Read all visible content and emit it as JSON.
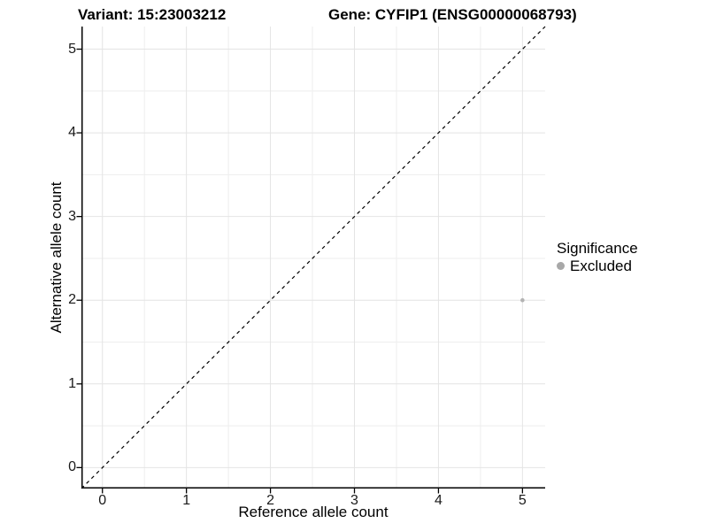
{
  "header": {
    "variant_title": "Variant: 15:23003212",
    "gene_title": "Gene: CYFIP1 (ENSG00000068793)"
  },
  "axes": {
    "x_label": "Reference allele count",
    "y_label": "Alternative allele count",
    "x_tick_labels": [
      "0",
      "1",
      "2",
      "3",
      "4",
      "5"
    ],
    "y_tick_labels": [
      "0",
      "1",
      "2",
      "3",
      "4",
      "5"
    ]
  },
  "legend": {
    "title": "Significance",
    "items": [
      {
        "label": "Excluded",
        "color": "#a8a8a8"
      }
    ]
  },
  "chart_data": {
    "type": "scatter",
    "title": "Variant: 15:23003212 / Gene: CYFIP1 (ENSG00000068793)",
    "xlabel": "Reference allele count",
    "ylabel": "Alternative allele count",
    "xlim": [
      -0.25,
      5.27
    ],
    "ylim": [
      -0.25,
      5.27
    ],
    "xticks": [
      0,
      1,
      2,
      3,
      4,
      5
    ],
    "yticks": [
      0,
      1,
      2,
      3,
      4,
      5
    ],
    "minor_grid_step": 0.5,
    "grid": "on",
    "legend_position": "right",
    "series": [
      {
        "name": "Excluded",
        "color": "#b3b3b3",
        "point_radius": 2.3,
        "points": [
          {
            "x": 5,
            "y": 2
          }
        ]
      }
    ],
    "reference_line": {
      "kind": "identity",
      "equation": "y = x",
      "style": "dashed",
      "color": "#000000"
    }
  },
  "colors": {
    "background": "#ffffff",
    "grid_major": "#e4e4e4",
    "grid_minor": "#eeeeee",
    "axis_line": "#000000",
    "tick_text": "#1a1a1a"
  }
}
